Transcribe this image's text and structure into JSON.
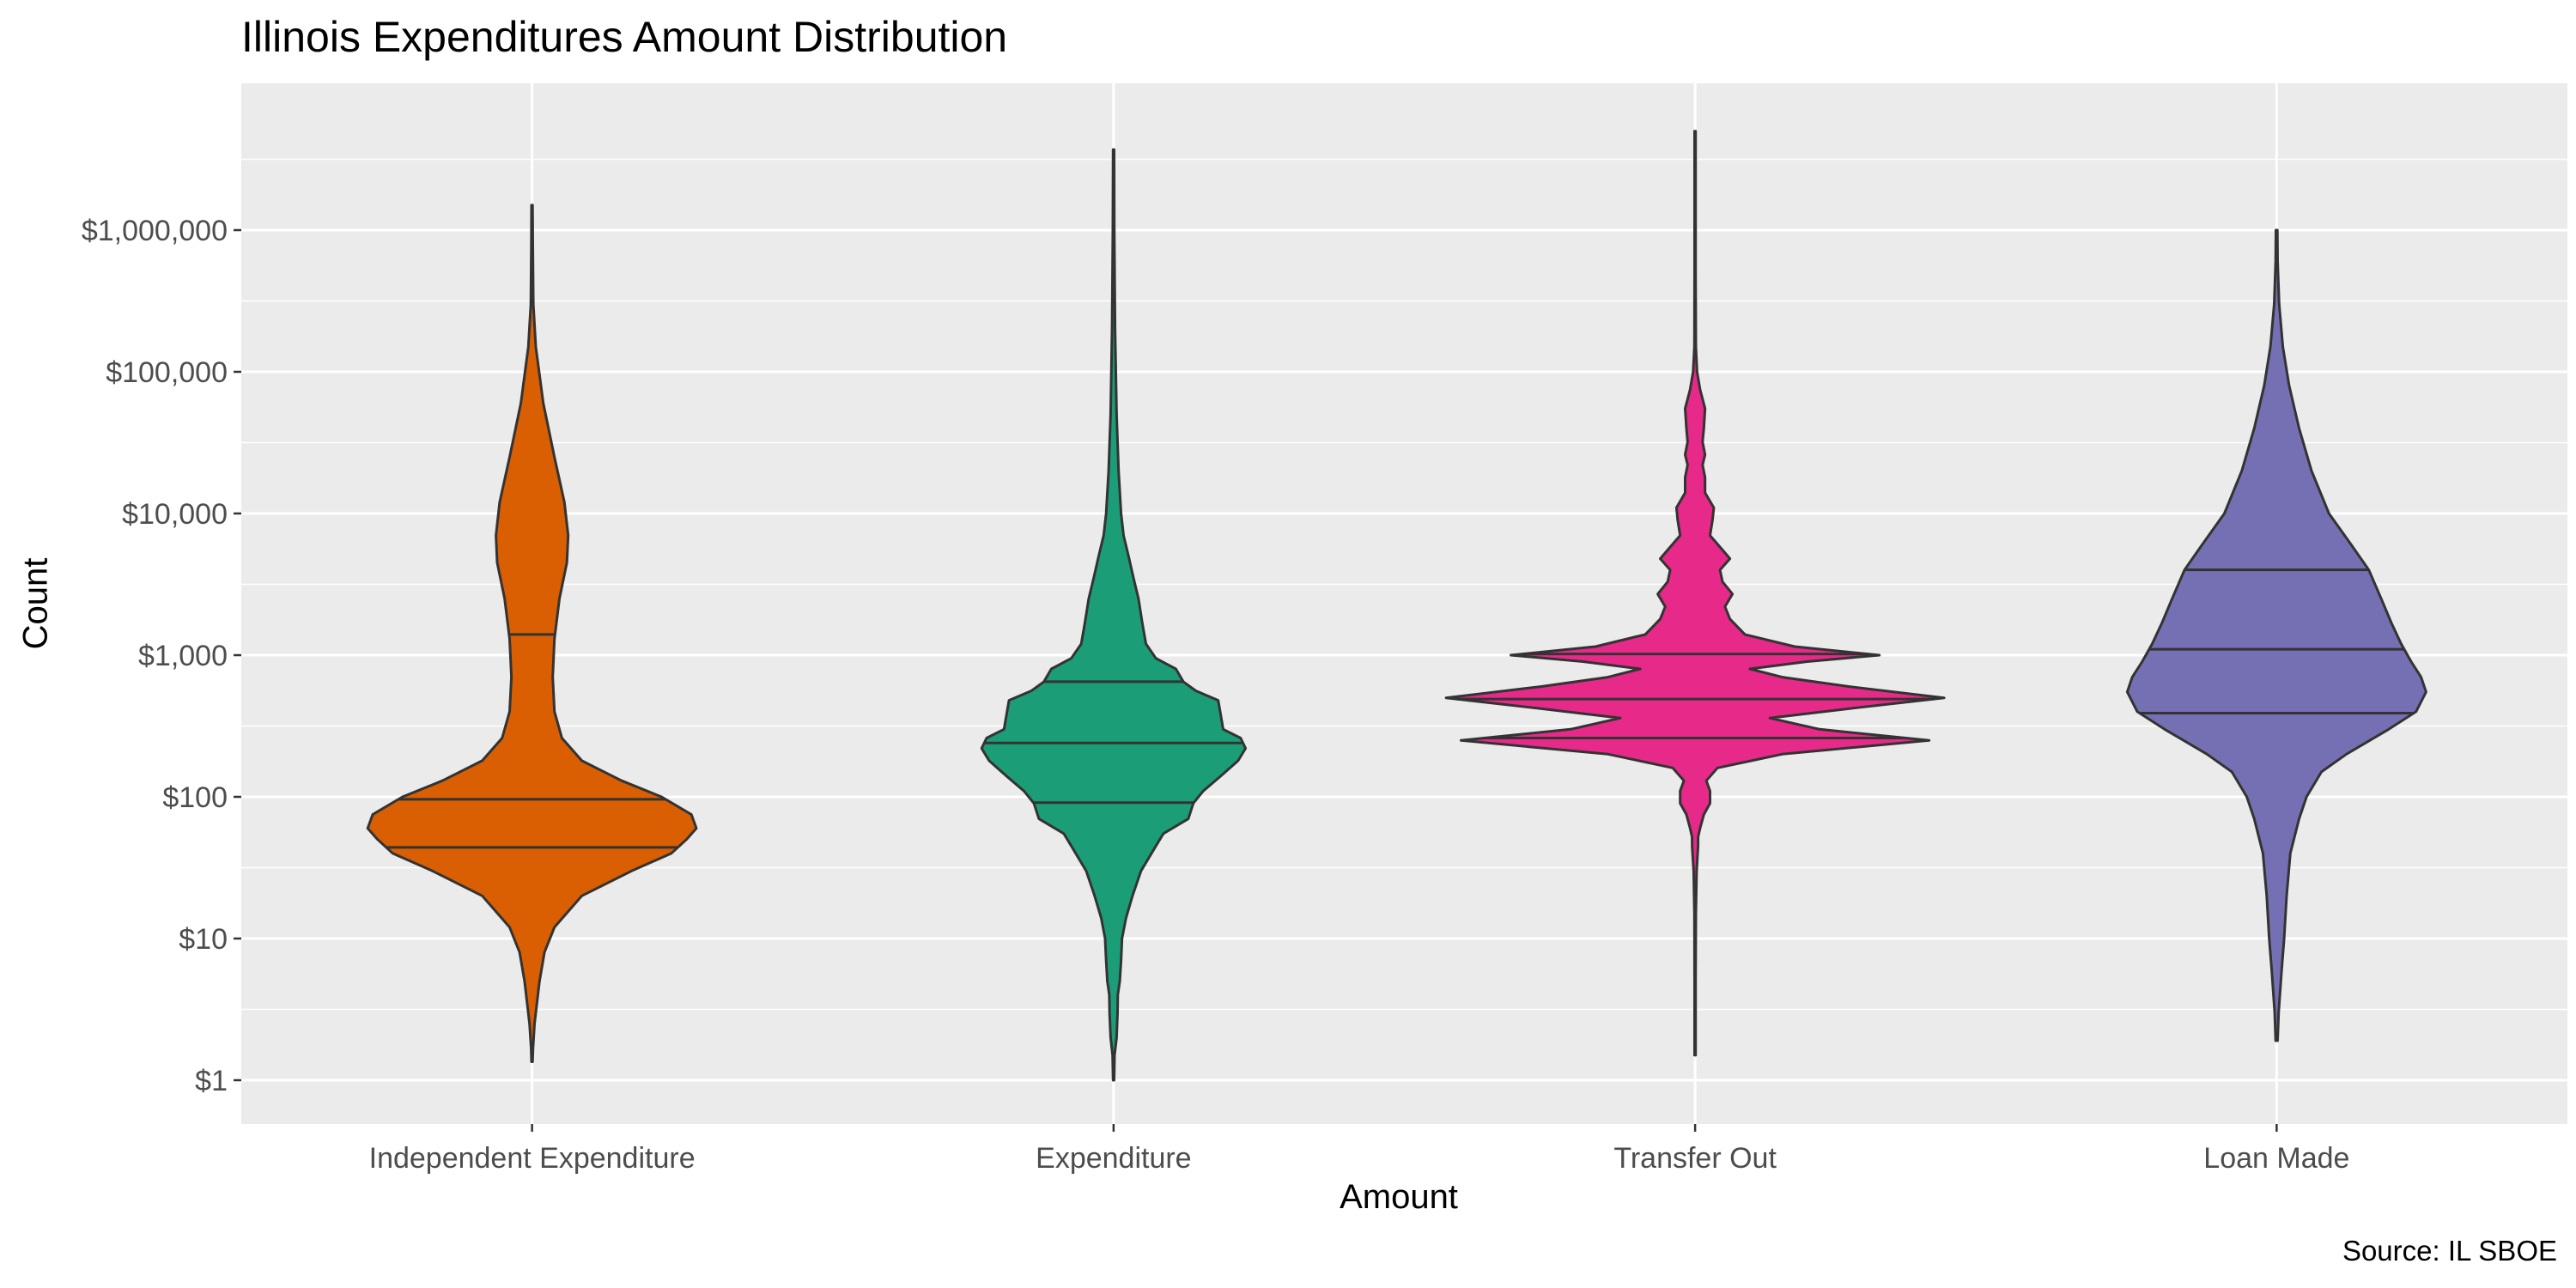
{
  "chart_data": {
    "type": "violin",
    "title": "Illinois Expenditures Amount Distribution",
    "xlabel": "Amount",
    "ylabel": "Count",
    "caption": "Source: IL SBOE",
    "y_scale": "log10",
    "ylim": [
      0.7,
      9000000
    ],
    "y_ticks": [
      1,
      10,
      100,
      1000,
      10000,
      100000,
      1000000
    ],
    "y_tick_labels": [
      "$1",
      "$10",
      "$100",
      "$1,000",
      "$10,000",
      "$100,000",
      "$1,000,000"
    ],
    "grid": true,
    "legend": "none",
    "categories": [
      "Independent Expenditure",
      "Expenditure",
      "Transfer Out",
      "Loan Made"
    ],
    "series": [
      {
        "category": "Independent Expenditure",
        "color": "#D95F02",
        "min": 1.35,
        "max": 1500000,
        "quantiles": {
          "q25": 44,
          "median": 96,
          "q75": 1400
        },
        "density": [
          [
            1.35,
            0.002
          ],
          [
            1.7,
            0.004
          ],
          [
            2.5,
            0.01
          ],
          [
            5,
            0.03
          ],
          [
            8,
            0.05
          ],
          [
            12,
            0.09
          ],
          [
            20,
            0.2
          ],
          [
            30,
            0.4
          ],
          [
            40,
            0.56
          ],
          [
            50,
            0.62
          ],
          [
            60,
            0.66
          ],
          [
            75,
            0.64
          ],
          [
            100,
            0.52
          ],
          [
            130,
            0.36
          ],
          [
            180,
            0.2
          ],
          [
            260,
            0.12
          ],
          [
            400,
            0.09
          ],
          [
            700,
            0.083
          ],
          [
            1300,
            0.09
          ],
          [
            2500,
            0.11
          ],
          [
            4500,
            0.14
          ],
          [
            7000,
            0.145
          ],
          [
            12000,
            0.13
          ],
          [
            25000,
            0.09
          ],
          [
            60000,
            0.045
          ],
          [
            150000,
            0.015
          ],
          [
            300000,
            0.005
          ],
          [
            800000,
            0.003
          ],
          [
            1500000,
            0.002
          ]
        ]
      },
      {
        "category": "Expenditure",
        "color": "#1B9E77",
        "min": 1,
        "max": 3700000,
        "quantiles": {
          "q25": 91,
          "median": 240,
          "q75": 650
        },
        "density": [
          [
            1,
            0.002
          ],
          [
            1.5,
            0.004
          ],
          [
            2,
            0.012
          ],
          [
            3,
            0.016
          ],
          [
            4,
            0.017
          ],
          [
            5,
            0.025
          ],
          [
            7,
            0.03
          ],
          [
            10,
            0.034
          ],
          [
            14,
            0.05
          ],
          [
            20,
            0.076
          ],
          [
            30,
            0.11
          ],
          [
            45,
            0.17
          ],
          [
            55,
            0.2
          ],
          [
            70,
            0.3
          ],
          [
            90,
            0.32
          ],
          [
            110,
            0.36
          ],
          [
            140,
            0.43
          ],
          [
            180,
            0.5
          ],
          [
            220,
            0.53
          ],
          [
            260,
            0.51
          ],
          [
            300,
            0.44
          ],
          [
            380,
            0.43
          ],
          [
            480,
            0.42
          ],
          [
            560,
            0.33
          ],
          [
            650,
            0.28
          ],
          [
            800,
            0.25
          ],
          [
            950,
            0.17
          ],
          [
            1200,
            0.13
          ],
          [
            1700,
            0.115
          ],
          [
            2500,
            0.1
          ],
          [
            3500,
            0.08
          ],
          [
            5000,
            0.06
          ],
          [
            7000,
            0.04
          ],
          [
            10000,
            0.03
          ],
          [
            20000,
            0.02
          ],
          [
            50000,
            0.012
          ],
          [
            200000,
            0.006
          ],
          [
            1000000,
            0.003
          ],
          [
            3700000,
            0.002
          ]
        ]
      },
      {
        "category": "Transfer Out",
        "color": "#E7298A",
        "min": 1.5,
        "max": 5000000,
        "quantiles": {
          "q25": 260,
          "median": 490,
          "q75": 1020
        },
        "density": [
          [
            1.5,
            0.002
          ],
          [
            5,
            0.002
          ],
          [
            15,
            0.003
          ],
          [
            30,
            0.006
          ],
          [
            45,
            0.012
          ],
          [
            52,
            0.012
          ],
          [
            60,
            0.02
          ],
          [
            75,
            0.035
          ],
          [
            90,
            0.06
          ],
          [
            110,
            0.06
          ],
          [
            130,
            0.045
          ],
          [
            160,
            0.09
          ],
          [
            200,
            0.35
          ],
          [
            250,
            0.94
          ],
          [
            300,
            0.5
          ],
          [
            360,
            0.3
          ],
          [
            420,
            0.62
          ],
          [
            500,
            1.0
          ],
          [
            600,
            0.62
          ],
          [
            700,
            0.35
          ],
          [
            800,
            0.22
          ],
          [
            900,
            0.45
          ],
          [
            1000,
            0.74
          ],
          [
            1150,
            0.4
          ],
          [
            1400,
            0.2
          ],
          [
            1800,
            0.14
          ],
          [
            2200,
            0.12
          ],
          [
            2700,
            0.15
          ],
          [
            3300,
            0.11
          ],
          [
            4000,
            0.1
          ],
          [
            4800,
            0.14
          ],
          [
            5800,
            0.1
          ],
          [
            7000,
            0.06
          ],
          [
            9000,
            0.07
          ],
          [
            11000,
            0.075
          ],
          [
            14000,
            0.04
          ],
          [
            18000,
            0.04
          ],
          [
            22000,
            0.03
          ],
          [
            26000,
            0.04
          ],
          [
            32000,
            0.03
          ],
          [
            40000,
            0.035
          ],
          [
            55000,
            0.04
          ],
          [
            75000,
            0.02
          ],
          [
            100000,
            0.008
          ],
          [
            150000,
            0.003
          ],
          [
            500000,
            0.002
          ],
          [
            5000000,
            0.002
          ]
        ]
      },
      {
        "category": "Loan Made",
        "color": "#7570B3",
        "min": 1.9,
        "max": 1000000,
        "quantiles": {
          "q25": 390,
          "median": 1100,
          "q75": 4000
        },
        "density": [
          [
            1.9,
            0.004
          ],
          [
            3,
            0.008
          ],
          [
            6,
            0.02
          ],
          [
            10,
            0.03
          ],
          [
            20,
            0.04
          ],
          [
            40,
            0.055
          ],
          [
            70,
            0.09
          ],
          [
            100,
            0.12
          ],
          [
            150,
            0.18
          ],
          [
            200,
            0.28
          ],
          [
            300,
            0.45
          ],
          [
            400,
            0.56
          ],
          [
            550,
            0.6
          ],
          [
            700,
            0.58
          ],
          [
            900,
            0.54
          ],
          [
            1200,
            0.5
          ],
          [
            1700,
            0.46
          ],
          [
            2500,
            0.42
          ],
          [
            4000,
            0.37
          ],
          [
            6000,
            0.3
          ],
          [
            10000,
            0.21
          ],
          [
            20000,
            0.14
          ],
          [
            40000,
            0.09
          ],
          [
            80000,
            0.05
          ],
          [
            150000,
            0.025
          ],
          [
            300000,
            0.01
          ],
          [
            600000,
            0.004
          ],
          [
            1000000,
            0.003
          ]
        ]
      }
    ]
  }
}
